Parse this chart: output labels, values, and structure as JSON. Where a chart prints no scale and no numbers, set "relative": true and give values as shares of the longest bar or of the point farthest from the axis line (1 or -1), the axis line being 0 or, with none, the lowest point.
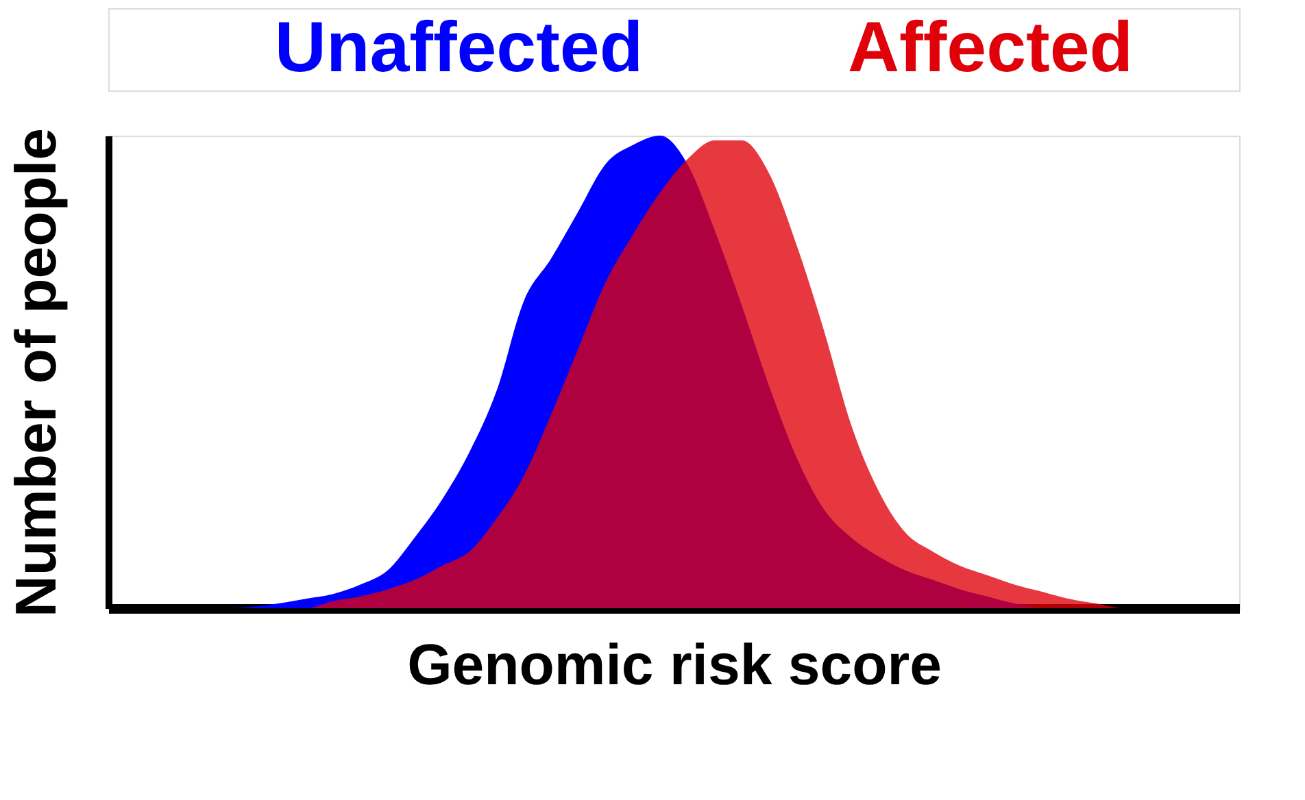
{
  "chart_data": {
    "type": "area",
    "relative": true,
    "xlabel": "Genomic risk score",
    "ylabel": "Number of people",
    "tick_labels": false,
    "grid": false,
    "legend": "top",
    "categories": [
      null,
      null,
      null,
      null,
      null,
      null,
      null,
      null,
      null,
      null,
      null,
      null,
      null,
      null,
      null,
      null,
      null,
      null,
      null,
      null,
      null,
      null,
      null,
      null,
      null,
      null,
      null,
      null,
      null,
      null,
      null,
      null,
      null,
      null,
      null,
      null,
      null,
      null,
      null,
      null,
      null,
      null
    ],
    "series": [
      {
        "name": "Unaffected",
        "color": "#0000ff",
        "values": [
          0,
          0,
          0,
          0,
          0,
          0.003,
          0.01,
          0.02,
          0.03,
          0.05,
          0.08,
          0.15,
          0.23,
          0.33,
          0.46,
          0.65,
          0.74,
          0.84,
          0.94,
          0.98,
          1.0,
          0.94,
          0.8,
          0.64,
          0.47,
          0.32,
          0.21,
          0.15,
          0.11,
          0.08,
          0.06,
          0.04,
          0.025,
          0.01,
          0,
          0,
          0,
          0,
          0,
          0,
          0,
          0
        ]
      },
      {
        "name": "Affected",
        "color": "#e0000a",
        "values": [
          0,
          0,
          0,
          0,
          0,
          0,
          0,
          0,
          0.015,
          0.025,
          0.04,
          0.06,
          0.09,
          0.12,
          0.19,
          0.28,
          0.41,
          0.55,
          0.69,
          0.79,
          0.88,
          0.95,
          0.99,
          0.99,
          0.92,
          0.77,
          0.59,
          0.39,
          0.25,
          0.16,
          0.12,
          0.09,
          0.07,
          0.05,
          0.035,
          0.02,
          0.01,
          0,
          0,
          0,
          0,
          0
        ]
      }
    ]
  }
}
